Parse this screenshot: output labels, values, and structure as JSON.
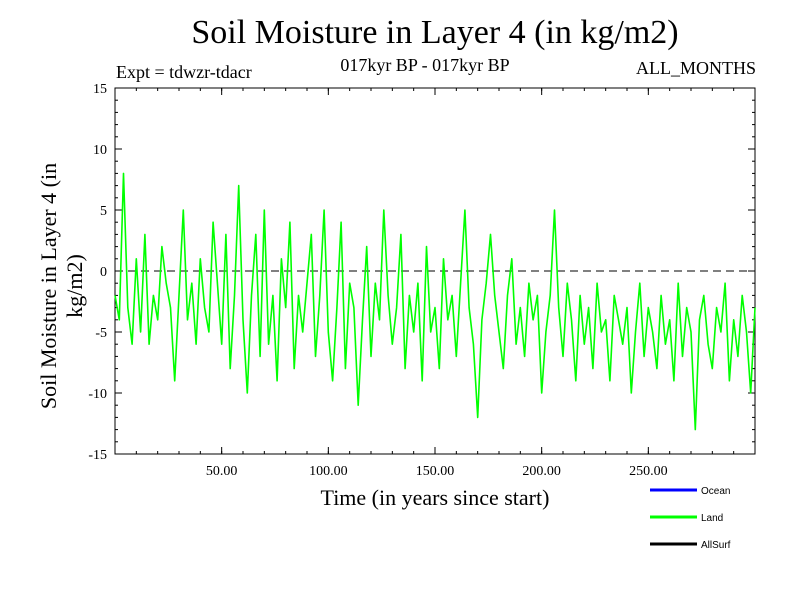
{
  "header": {
    "title": "Soil Moisture in Layer 4 (in kg/m2)",
    "subtitle": "017kyr BP - 017kyr BP",
    "experiment": "Expt = tdwzr-tdacr",
    "months": "ALL_MONTHS"
  },
  "colors": {
    "ocean": "#0000ff",
    "land": "#00ff00",
    "allsurf": "#000000",
    "axis": "#000000"
  },
  "chart_data": {
    "type": "line",
    "xlabel": "Time (in years since start)",
    "ylabel": "Soil Moisture in Layer 4 (in kg/m2)",
    "xlim": [
      0,
      300
    ],
    "ylim": [
      -15,
      15
    ],
    "x_ticks": [
      50,
      100,
      150,
      200,
      250
    ],
    "x_tick_labels": [
      "50.00",
      "100.00",
      "150.00",
      "200.00",
      "250.00"
    ],
    "y_ticks": [
      -15,
      -10,
      -5,
      0,
      5,
      10,
      15
    ],
    "y_tick_labels": [
      "-15",
      "-10",
      "-5",
      "0",
      "5",
      "10",
      "15"
    ],
    "zero_line": true,
    "legend": [
      {
        "name": "Ocean",
        "color": "#0000ff"
      },
      {
        "name": "Land",
        "color": "#00ff00"
      },
      {
        "name": "AllSurf",
        "color": "#000000"
      }
    ],
    "series": [
      {
        "name": "Land",
        "color": "#00ff00",
        "x": [
          0,
          2,
          4,
          6,
          8,
          10,
          12,
          14,
          16,
          18,
          20,
          22,
          24,
          26,
          28,
          30,
          32,
          34,
          36,
          38,
          40,
          42,
          44,
          46,
          48,
          50,
          52,
          54,
          56,
          58,
          60,
          62,
          64,
          66,
          68,
          70,
          72,
          74,
          76,
          78,
          80,
          82,
          84,
          86,
          88,
          90,
          92,
          94,
          96,
          98,
          100,
          102,
          104,
          106,
          108,
          110,
          112,
          114,
          116,
          118,
          120,
          122,
          124,
          126,
          128,
          130,
          132,
          134,
          136,
          138,
          140,
          142,
          144,
          146,
          148,
          150,
          152,
          154,
          156,
          158,
          160,
          162,
          164,
          166,
          168,
          170,
          172,
          174,
          176,
          178,
          180,
          182,
          184,
          186,
          188,
          190,
          192,
          194,
          196,
          198,
          200,
          202,
          204,
          206,
          208,
          210,
          212,
          214,
          216,
          218,
          220,
          222,
          224,
          226,
          228,
          230,
          232,
          234,
          236,
          238,
          240,
          242,
          244,
          246,
          248,
          250,
          252,
          254,
          256,
          258,
          260,
          262,
          264,
          266,
          268,
          270,
          272,
          274,
          276,
          278,
          280,
          282,
          284,
          286,
          288,
          290,
          292,
          294,
          296,
          298,
          300
        ],
        "y": [
          -2,
          -4,
          8,
          -3,
          -6,
          1,
          -5,
          3,
          -6,
          -2,
          -4,
          2,
          -1,
          -3,
          -9,
          -2,
          5,
          -4,
          -1,
          -6,
          1,
          -3,
          -5,
          4,
          -1,
          -6,
          3,
          -8,
          -2,
          7,
          -4,
          -10,
          -2,
          3,
          -7,
          5,
          -6,
          -2,
          -9,
          1,
          -3,
          4,
          -8,
          -2,
          -5,
          -1,
          3,
          -7,
          -2,
          5,
          -5,
          -9,
          -3,
          4,
          -8,
          -1,
          -3,
          -11,
          -4,
          2,
          -7,
          -1,
          -4,
          5,
          -2,
          -6,
          -3,
          3,
          -8,
          -2,
          -5,
          -1,
          -9,
          2,
          -5,
          -3,
          -8,
          1,
          -4,
          -2,
          -7,
          -1,
          5,
          -3,
          -6,
          -12,
          -4,
          -1,
          3,
          -2,
          -5,
          -8,
          -2,
          1,
          -6,
          -3,
          -7,
          -1,
          -4,
          -2,
          -10,
          -5,
          -2,
          5,
          -3,
          -7,
          -1,
          -4,
          -9,
          -2,
          -6,
          -3,
          -8,
          -1,
          -5,
          -4,
          -9,
          -2,
          -4,
          -6,
          -3,
          -10,
          -5,
          -1,
          -7,
          -3,
          -5,
          -8,
          -2,
          -6,
          -4,
          -9,
          -1,
          -7,
          -3,
          -5,
          -13,
          -4,
          -2,
          -6,
          -8,
          -3,
          -5,
          -1,
          -9,
          -4,
          -7,
          -2,
          -5,
          -10,
          -3
        ]
      }
    ]
  }
}
